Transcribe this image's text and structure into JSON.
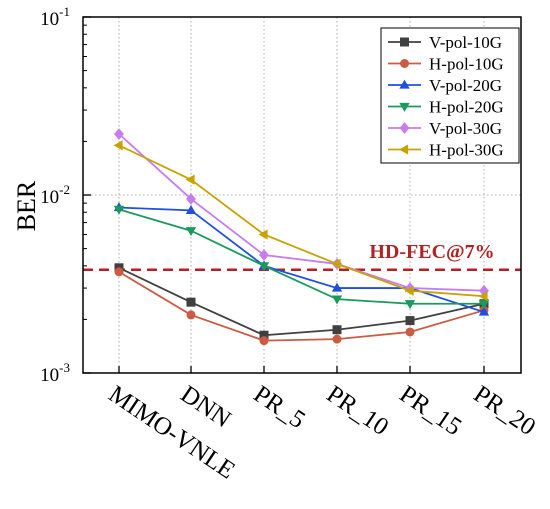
{
  "chart_data": {
    "type": "line",
    "x_scale": "categorical",
    "y_scale": "log",
    "categories": [
      "MIMO-VNLE",
      "DNN",
      "PR_5",
      "PR_10",
      "PR_15",
      "PR_20"
    ],
    "ylabel": "BER",
    "ylim": [
      0.001,
      0.1
    ],
    "y_ticks": [
      {
        "value": 0.001,
        "base": "10",
        "exp": "-3"
      },
      {
        "value": 0.01,
        "base": "10",
        "exp": "-2"
      },
      {
        "value": 0.1,
        "base": "10",
        "exp": "-1"
      }
    ],
    "grid": true,
    "legend_position": "top-right",
    "series": [
      {
        "name": "V-pol-10G",
        "color": "#404040",
        "marker": "square",
        "values": [
          0.0039,
          0.0025,
          0.00163,
          0.00175,
          0.00197,
          0.00245
        ]
      },
      {
        "name": "H-pol-10G",
        "color": "#cc5b43",
        "marker": "circle",
        "values": [
          0.0037,
          0.00212,
          0.00152,
          0.00155,
          0.0017,
          0.00225
        ]
      },
      {
        "name": "V-pol-20G",
        "color": "#1f4fe0",
        "marker": "triangle-up",
        "values": [
          0.0085,
          0.0082,
          0.004,
          0.003,
          0.003,
          0.0022
        ]
      },
      {
        "name": "H-pol-20G",
        "color": "#1a9a5c",
        "marker": "triangle-down",
        "values": [
          0.0083,
          0.0063,
          0.004,
          0.0026,
          0.00245,
          0.00245
        ]
      },
      {
        "name": "V-pol-30G",
        "color": "#c77cf0",
        "marker": "diamond",
        "values": [
          0.022,
          0.0095,
          0.0046,
          0.0041,
          0.003,
          0.0029
        ]
      },
      {
        "name": "H-pol-30G",
        "color": "#c7a200",
        "marker": "triangle-left",
        "values": [
          0.019,
          0.0122,
          0.006,
          0.0041,
          0.0029,
          0.0027
        ]
      }
    ],
    "annotations": [
      {
        "text": "HD-FEC@7%",
        "y": 0.0038,
        "color": "#b22222",
        "style": "dashed-line"
      }
    ]
  }
}
